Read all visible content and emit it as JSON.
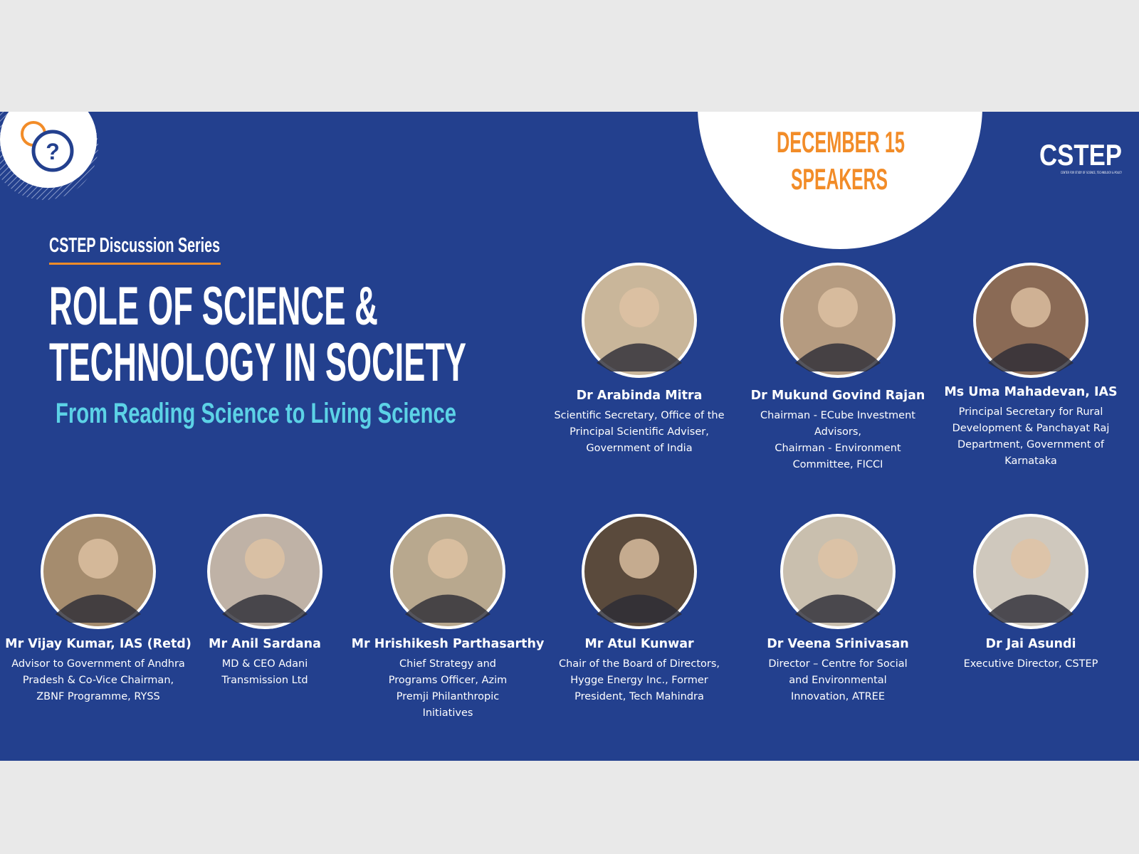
{
  "header": {
    "series": "CSTEP Discussion Series",
    "title_lines": [
      "ROLE OF SCIENCE &",
      "TECHNOLOGY IN SOCIETY"
    ],
    "subtitle": "From Reading Science to Living Science",
    "date": "DECEMBER 15",
    "label": "SPEAKERS"
  },
  "logo": {
    "name": "CSTEP",
    "tagline": "CENTER FOR STUDY OF SCIENCE, TECHNOLOGY & POLICY"
  },
  "speakers": [
    {
      "name": "Dr Arabinda Mitra",
      "role": [
        "Scientific Secretary, Office of the",
        "Principal Scientific Adviser,",
        "Government of India"
      ]
    },
    {
      "name": "Dr Mukund Govind Rajan",
      "role": [
        "Chairman - ECube Investment",
        "Advisors,",
        "Chairman - Environment",
        "Committee, FICCI"
      ]
    },
    {
      "name": "Ms Uma Mahadevan, IAS",
      "role": [
        "Principal Secretary for Rural",
        "Development & Panchayat Raj",
        "Department, Government of",
        "Karnataka"
      ]
    },
    {
      "name": "Mr Vijay Kumar, IAS (Retd)",
      "role": [
        "Advisor to Government of Andhra",
        "Pradesh & Co-Vice Chairman,",
        "ZBNF Programme, RYSS"
      ]
    },
    {
      "name": "Mr Anil Sardana",
      "role": [
        "MD & CEO Adani",
        "Transmission Ltd"
      ]
    },
    {
      "name": "Mr Hrishikesh Parthasarthy",
      "role": [
        "Chief Strategy and",
        "Programs Officer, Azim",
        "Premji Philanthropic",
        "Initiatives"
      ]
    },
    {
      "name": "Mr Atul Kunwar",
      "role": [
        "Chair of the Board of Directors,",
        "Hygge Energy Inc., Former",
        "President, Tech Mahindra"
      ]
    },
    {
      "name": "Dr Veena Srinivasan",
      "role": [
        "Director – Centre for Social",
        "and Environmental",
        "Innovation, ATREE"
      ]
    },
    {
      "name": "Dr Jai Asundi",
      "role": [
        "Executive Director, CSTEP"
      ]
    }
  ]
}
